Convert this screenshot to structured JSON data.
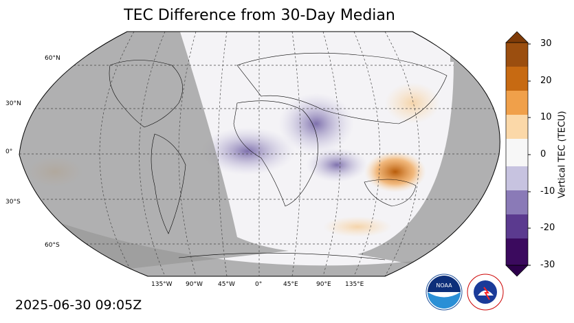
{
  "title": "TEC Difference from 30-Day Median",
  "timestamp": "2025-06-30 09:05Z",
  "colorbar": {
    "label": "Vertical TEC (TECU)",
    "ticks": [
      "30",
      "20",
      "10",
      "0",
      "-10",
      "-20",
      "-30"
    ],
    "min": -30,
    "max": 30,
    "colors": [
      "#3b0a5e",
      "#5b3a8f",
      "#8a7ab7",
      "#c7c3e0",
      "#f7f7f7",
      "#fbd8a8",
      "#f0a04a",
      "#c76a12",
      "#7f3b08"
    ]
  },
  "lat_labels": [
    "60°N",
    "30°N",
    "0°",
    "30°S",
    "60°S"
  ],
  "lon_labels": [
    "135°W",
    "90°W",
    "45°W",
    "0°",
    "45°E",
    "90°E",
    "135°E"
  ],
  "logos": {
    "noaa": "NOAA",
    "nws": "NATIONAL WEATHER SERVICE"
  }
}
